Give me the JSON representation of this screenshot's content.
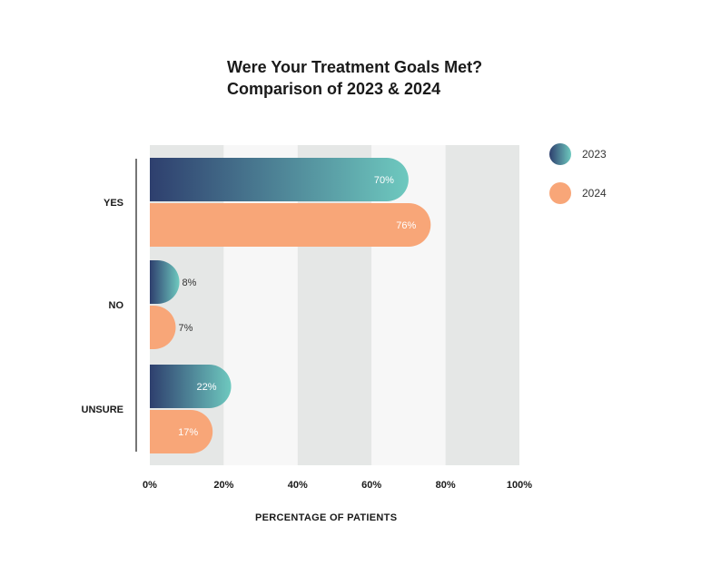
{
  "title": {
    "line1": "Were Your Treatment Goals Met?",
    "line2": "Comparison of 2023 & 2024"
  },
  "legend": [
    {
      "label": "2023"
    },
    {
      "label": "2024"
    }
  ],
  "colors": {
    "series_2023_start": "#2e3f6e",
    "series_2023_end": "#6ec9bf",
    "series_2024": "#f8a678",
    "band_dark": "#e5e7e6",
    "band_light": "#f7f7f7",
    "axis": "#1a1a1a"
  },
  "chart_data": {
    "type": "bar",
    "orientation": "horizontal",
    "title": "Were Your Treatment Goals Met? Comparison of 2023 & 2024",
    "xlabel": "PERCENTAGE OF PATIENTS",
    "ylabel": "",
    "categories": [
      "YES",
      "NO",
      "UNSURE"
    ],
    "series": [
      {
        "name": "2023",
        "values": [
          70,
          8,
          22
        ],
        "labels": [
          "70%",
          "8%",
          "22%"
        ]
      },
      {
        "name": "2024",
        "values": [
          76,
          7,
          17
        ],
        "labels": [
          "76%",
          "7%",
          "17%"
        ]
      }
    ],
    "xlim": [
      0,
      100
    ],
    "xticks": [
      "0%",
      "20%",
      "40%",
      "60%",
      "80%",
      "100%"
    ],
    "legend": "right",
    "grid": "alternating vertical bands"
  }
}
